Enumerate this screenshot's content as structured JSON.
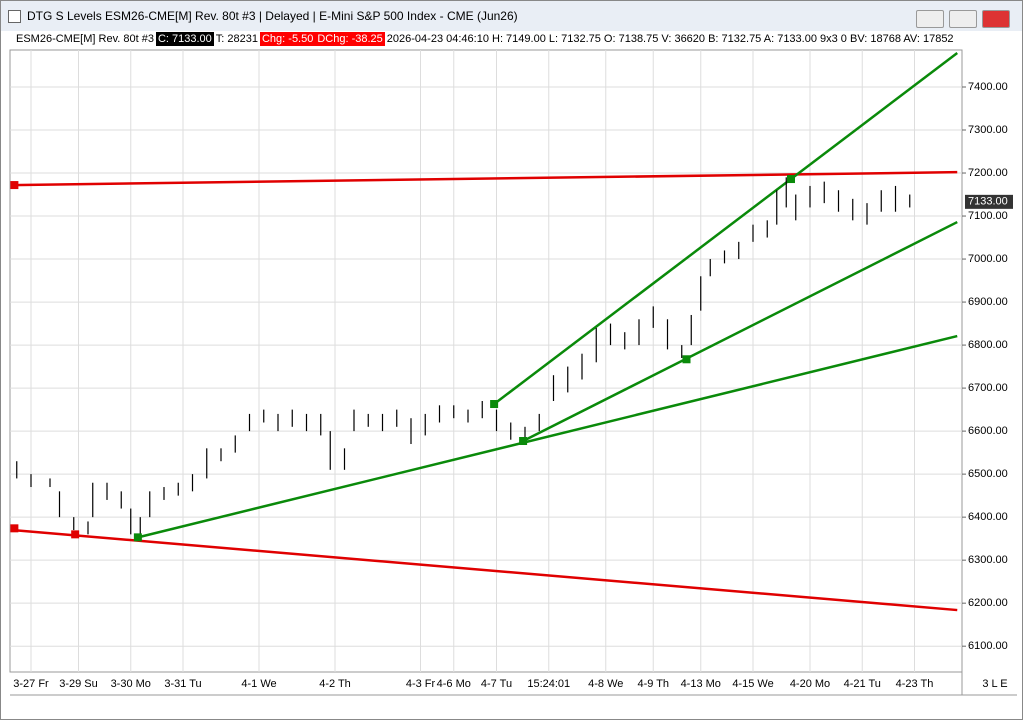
{
  "window": {
    "title": "DTG S Levels ESM26-CME[M]  Rev. 80t #3 | Delayed | E-Mini S&P 500 Index - CME (Jun26)",
    "status": "3 L E"
  },
  "info_bar": [
    {
      "text": "ESM26-CME[M]  Rev. 80t #3",
      "style": "plain"
    },
    {
      "text": "C: 7133.00",
      "style": "black"
    },
    {
      "text": "T: 28231",
      "style": "plain"
    },
    {
      "text": "Chg: -5.50",
      "style": "red"
    },
    {
      "text": "DChg: -38.25",
      "style": "red"
    },
    {
      "text": "2026-04-23 04:46:10 H: 7149.00 L: 7132.75 O: 7138.75 V: 36620 B: 7132.75 A: 7133.00 9x3 0 BV: 18768 AV: 17852",
      "style": "plain"
    }
  ],
  "chart_data": {
    "type": "range-bar",
    "color": "#000000",
    "grid": true,
    "last_price": {
      "value": 7133,
      "label": "7133.00"
    },
    "xlim": [
      0,
      200
    ],
    "ylim": [
      6040,
      7486
    ],
    "yticks": [
      {
        "value": 6100,
        "label": "6100.00"
      },
      {
        "value": 6200,
        "label": "6200.00"
      },
      {
        "value": 6300,
        "label": "6300.00"
      },
      {
        "value": 6400,
        "label": "6400.00"
      },
      {
        "value": 6500,
        "label": "6500.00"
      },
      {
        "value": 6600,
        "label": "6600.00"
      },
      {
        "value": 6700,
        "label": "6700.00"
      },
      {
        "value": 6800,
        "label": "6800.00"
      },
      {
        "value": 6900,
        "label": "6900.00"
      },
      {
        "value": 7000,
        "label": "7000.00"
      },
      {
        "value": 7100,
        "label": "7100.00"
      },
      {
        "value": 7200,
        "label": "7200.00"
      },
      {
        "value": 7300,
        "label": "7300.00"
      },
      {
        "value": 7400,
        "label": "7400.00"
      }
    ],
    "xticks": [
      {
        "value": 4,
        "label": "3-27 Fr"
      },
      {
        "value": 14,
        "label": "3-29 Su"
      },
      {
        "value": 25,
        "label": "3-30 Mo"
      },
      {
        "value": 36,
        "label": "3-31 Tu"
      },
      {
        "value": 52,
        "label": "4-1 We"
      },
      {
        "value": 68,
        "label": "4-2 Th"
      },
      {
        "value": 86,
        "label": "4-3 Fr"
      },
      {
        "value": 93,
        "label": "4-6 Mo"
      },
      {
        "value": 102,
        "label": "4-7 Tu"
      },
      {
        "value": 113,
        "label": "15:24:01"
      },
      {
        "value": 125,
        "label": "4-8 We"
      },
      {
        "value": 135,
        "label": "4-9 Th"
      },
      {
        "value": 145,
        "label": "4-13 Mo"
      },
      {
        "value": 156,
        "label": "4-15 We"
      },
      {
        "value": 168,
        "label": "4-20 Mo"
      },
      {
        "value": 179,
        "label": "4-21 Tu"
      },
      {
        "value": 190,
        "label": "4-23 Th"
      }
    ],
    "x": [
      1,
      4,
      8,
      10,
      13,
      16,
      17,
      20,
      23,
      25,
      27,
      29,
      32,
      35,
      38,
      41,
      44,
      47,
      50,
      53,
      56,
      59,
      62,
      65,
      67,
      70,
      72,
      75,
      78,
      81,
      84,
      87,
      90,
      93,
      96,
      99,
      102,
      105,
      108,
      111,
      114,
      117,
      120,
      123,
      126,
      129,
      132,
      135,
      138,
      141,
      143,
      145,
      147,
      150,
      153,
      156,
      159,
      161,
      163,
      165,
      168,
      171,
      174,
      177,
      180,
      183,
      186,
      189
    ],
    "high": [
      6530,
      6500,
      6490,
      6460,
      6400,
      6390,
      6480,
      6480,
      6460,
      6420,
      6400,
      6460,
      6470,
      6480,
      6500,
      6560,
      6560,
      6590,
      6640,
      6650,
      6640,
      6650,
      6640,
      6640,
      6600,
      6560,
      6650,
      6640,
      6640,
      6650,
      6630,
      6640,
      6660,
      6660,
      6650,
      6670,
      6650,
      6620,
      6610,
      6640,
      6730,
      6750,
      6780,
      6840,
      6850,
      6830,
      6860,
      6890,
      6860,
      6800,
      6870,
      6960,
      7000,
      7020,
      7040,
      7080,
      7090,
      7160,
      7190,
      7150,
      7170,
      7180,
      7160,
      7140,
      7130,
      7160,
      7170,
      7150
    ],
    "low": [
      6490,
      6470,
      6470,
      6400,
      6370,
      6360,
      6400,
      6440,
      6420,
      6360,
      6350,
      6400,
      6440,
      6450,
      6460,
      6490,
      6530,
      6550,
      6600,
      6620,
      6600,
      6610,
      6600,
      6590,
      6510,
      6510,
      6600,
      6610,
      6600,
      6610,
      6570,
      6590,
      6620,
      6630,
      6620,
      6630,
      6600,
      6580,
      6580,
      6600,
      6670,
      6690,
      6720,
      6760,
      6800,
      6790,
      6800,
      6840,
      6790,
      6770,
      6800,
      6880,
      6960,
      6990,
      7000,
      7040,
      7050,
      7080,
      7120,
      7090,
      7120,
      7130,
      7110,
      7090,
      7080,
      7110,
      7110,
      7120
    ],
    "lines": [
      {
        "color": "#e00000",
        "x": [
          0,
          199
        ],
        "y": [
          7172,
          7202
        ]
      },
      {
        "color": "#e00000",
        "x": [
          0,
          199
        ],
        "y": [
          6370,
          6184
        ]
      },
      {
        "color": "#0a8a0a",
        "x": [
          26.5,
          199
        ],
        "y": [
          6353,
          6821
        ]
      },
      {
        "color": "#0a8a0a",
        "x": [
          107.6,
          199
        ],
        "y": [
          6577,
          7086
        ]
      },
      {
        "color": "#0a8a0a",
        "x": [
          101.5,
          199
        ],
        "y": [
          6663,
          7479
        ]
      }
    ],
    "points": [
      {
        "color": "#e00000",
        "x": 0.5,
        "y": 7172
      },
      {
        "color": "#e00000",
        "x": 0.5,
        "y": 6374
      },
      {
        "color": "#e00000",
        "x": 13.3,
        "y": 6360
      },
      {
        "color": "#0a8a0a",
        "x": 26.5,
        "y": 6353
      },
      {
        "color": "#0a8a0a",
        "x": 101.5,
        "y": 6663
      },
      {
        "color": "#0a8a0a",
        "x": 107.6,
        "y": 6577
      },
      {
        "color": "#0a8a0a",
        "x": 142,
        "y": 6767
      },
      {
        "color": "#0a8a0a",
        "x": 164,
        "y": 7186
      }
    ]
  }
}
